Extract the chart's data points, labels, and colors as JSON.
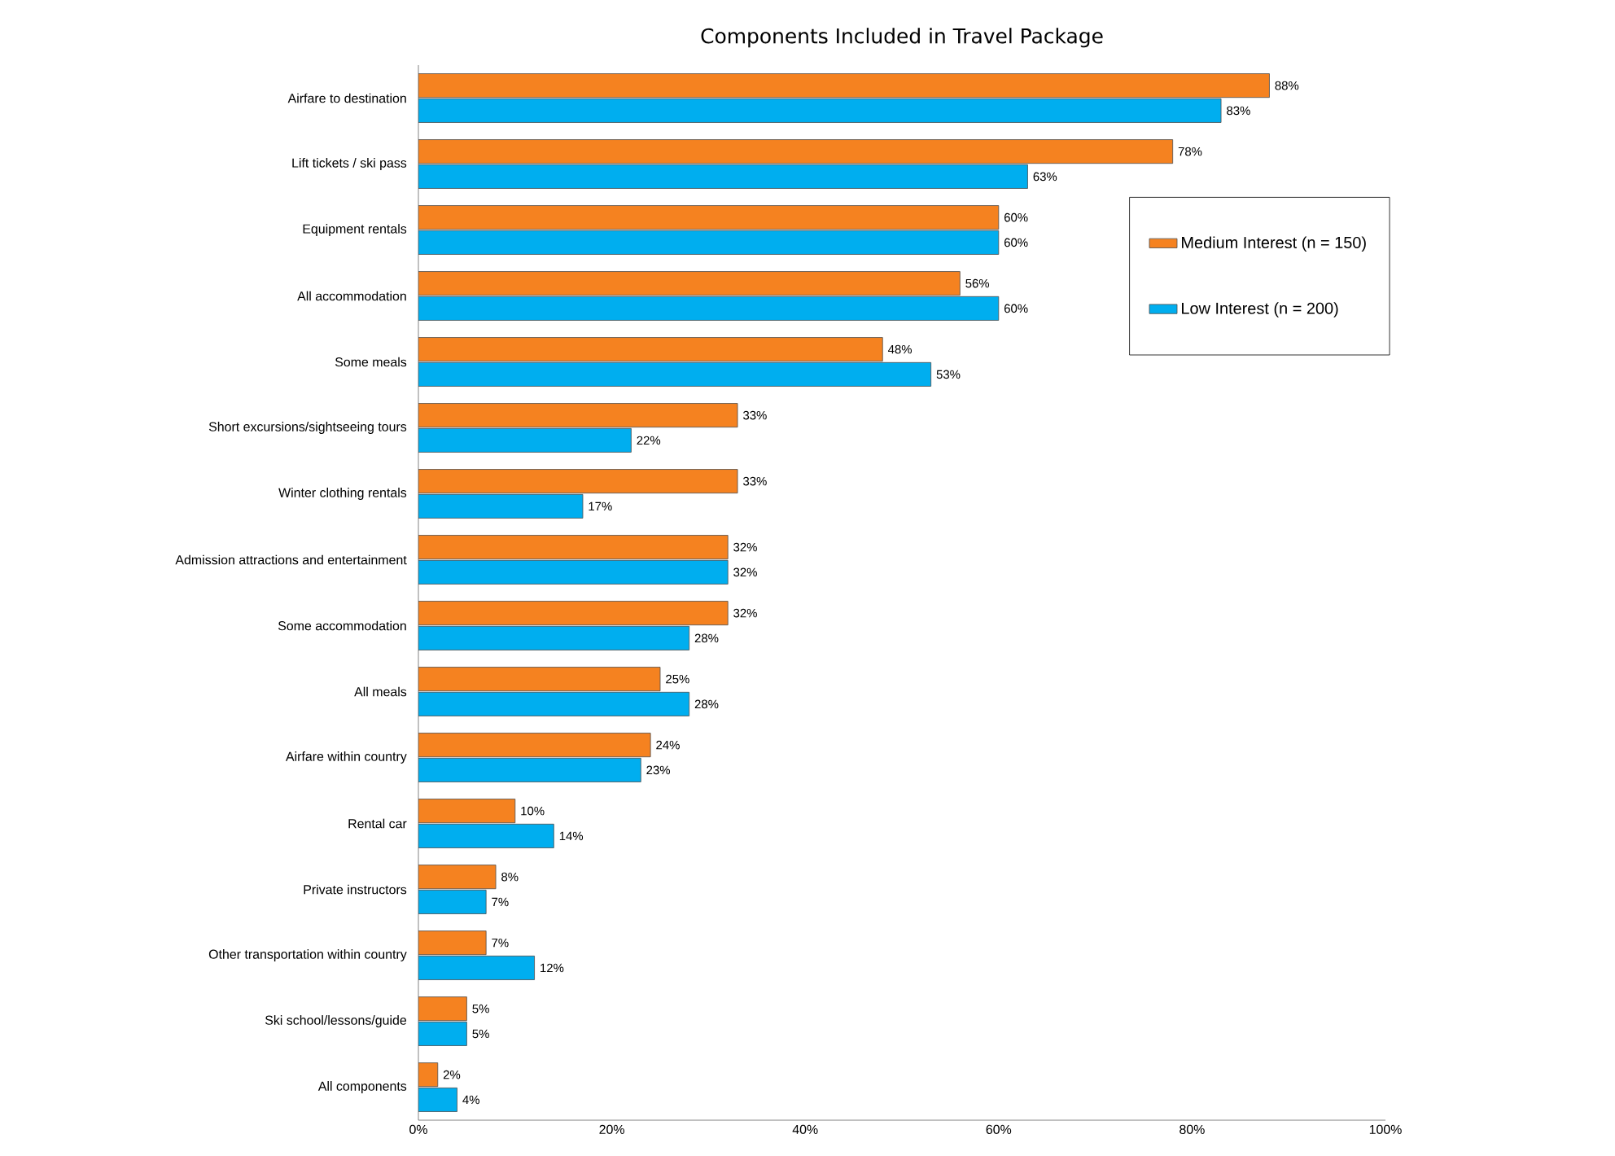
{
  "chart_data": {
    "type": "bar",
    "orientation": "horizontal",
    "title": "Components Included in Travel Package",
    "categories": [
      "Airfare to destination",
      "Lift tickets / ski pass",
      "Equipment rentals",
      "All accommodation",
      "Some meals",
      "Short excursions/sightseeing tours",
      "Winter clothing rentals",
      "Admission attractions and entertainment",
      "Some accommodation",
      "All meals",
      "Airfare within country",
      "Rental car",
      "Private instructors",
      "Other transportation within country",
      "Ski school/lessons/guide",
      "All components"
    ],
    "series": [
      {
        "name": "Medium Interest (n = 150)",
        "color": "#f58220",
        "values": [
          88,
          78,
          60,
          56,
          48,
          33,
          33,
          32,
          32,
          25,
          24,
          10,
          8,
          7,
          5,
          2
        ],
        "value_labels": [
          "88%",
          "78%",
          "60%",
          "56%",
          "48%",
          "33%",
          "33%",
          "32%",
          "32%",
          "25%",
          "24%",
          "10%",
          "8%",
          "7%",
          "5%",
          "2%"
        ]
      },
      {
        "name": "Low Interest (n = 200)",
        "color": "#00aeef",
        "values": [
          83,
          63,
          60,
          60,
          53,
          22,
          17,
          32,
          28,
          28,
          23,
          14,
          7,
          12,
          5,
          4
        ],
        "value_labels": [
          "83%",
          "63%",
          "60%",
          "60%",
          "53%",
          "22%",
          "17%",
          "32%",
          "28%",
          "28%",
          "23%",
          "14%",
          "7%",
          "12%",
          "5%",
          "4%"
        ]
      }
    ],
    "xlim": [
      0,
      100
    ],
    "xticks": [
      {
        "value": 0,
        "label": "0%"
      },
      {
        "value": 20,
        "label": "20%"
      },
      {
        "value": 40,
        "label": "40%"
      },
      {
        "value": 60,
        "label": "60%"
      },
      {
        "value": 80,
        "label": "80%"
      },
      {
        "value": 100,
        "label": "100%"
      }
    ],
    "grid": false,
    "legend": "right"
  }
}
